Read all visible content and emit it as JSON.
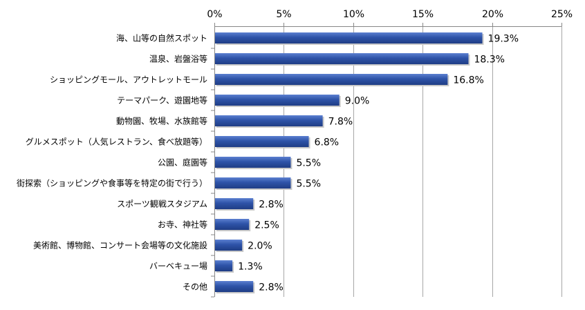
{
  "chart_data": {
    "type": "bar",
    "orientation": "horizontal",
    "categories": [
      "海、山等の自然スポット",
      "温泉、岩盤浴等",
      "ショッピングモール、アウトレットモール",
      "テーマパーク、遊園地等",
      "動物園、牧場、水族館等",
      "グルメスポット（人気レストラン、食べ放題等）",
      "公園、庭園等",
      "街探索（ショッピングや食事等を特定の街で行う）",
      "スポーツ観戦スタジアム",
      "お寺、神社等",
      "美術館、博物館、コンサート会場等の文化施設",
      "バーベキュー場",
      "その他"
    ],
    "values": [
      19.3,
      18.3,
      16.8,
      9.0,
      7.8,
      6.8,
      5.5,
      5.5,
      2.8,
      2.5,
      2.0,
      1.3,
      2.8
    ],
    "value_labels": [
      "19.3%",
      "18.3%",
      "16.8%",
      "9.0%",
      "7.8%",
      "6.8%",
      "5.5%",
      "5.5%",
      "2.8%",
      "2.5%",
      "2.0%",
      "1.3%",
      "2.8%"
    ],
    "x_ticks": [
      0,
      5,
      10,
      15,
      20,
      25
    ],
    "x_tick_labels": [
      "0%",
      "5%",
      "10%",
      "15%",
      "20%",
      "25%"
    ],
    "xlim": [
      0,
      25
    ],
    "axis_position": "top",
    "grid": true,
    "legend": "none",
    "bar_color": "#2e53a8",
    "title": "",
    "xlabel": "",
    "ylabel": ""
  }
}
